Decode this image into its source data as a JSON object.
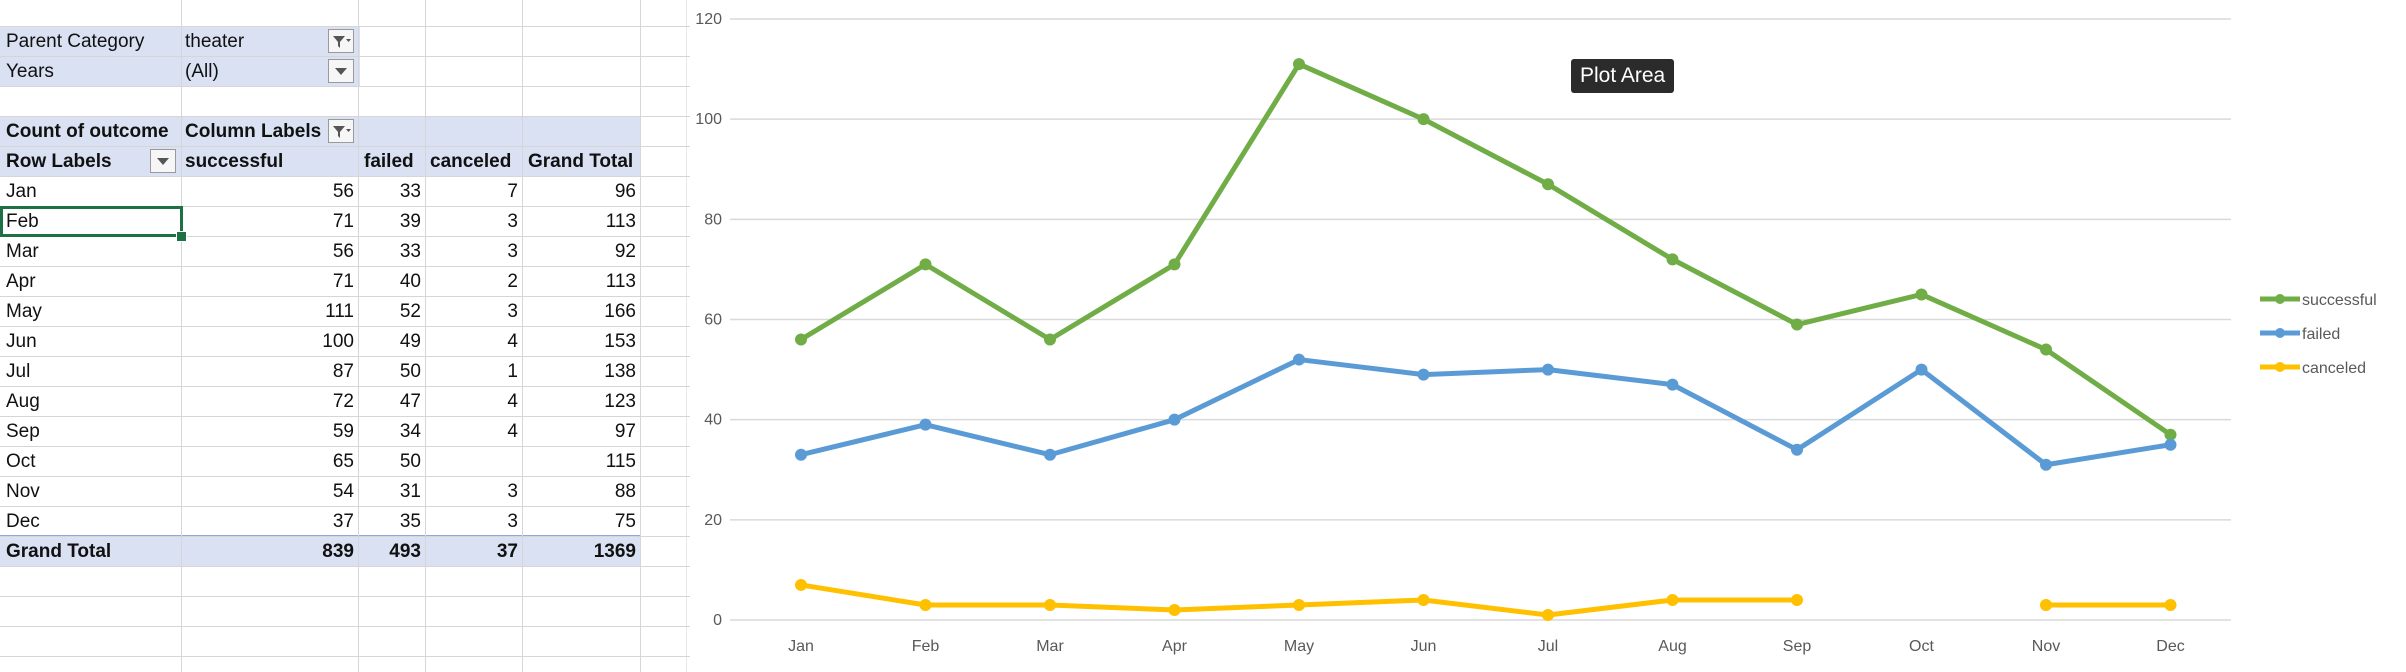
{
  "pivot": {
    "filters": [
      {
        "label": "Parent Category",
        "value": "theater",
        "filtered": true
      },
      {
        "label": "Years",
        "value": "(All)",
        "filtered": false
      }
    ],
    "count_label": "Count of outcome",
    "column_labels": "Column Labels",
    "row_labels": "Row Labels",
    "headers": [
      "successful",
      "failed",
      "canceled",
      "Grand Total"
    ],
    "rows": [
      {
        "label": "Jan",
        "values": [
          "56",
          "33",
          "7",
          "96"
        ]
      },
      {
        "label": "Feb",
        "values": [
          "71",
          "39",
          "3",
          "113"
        ]
      },
      {
        "label": "Mar",
        "values": [
          "56",
          "33",
          "3",
          "92"
        ]
      },
      {
        "label": "Apr",
        "values": [
          "71",
          "40",
          "2",
          "113"
        ]
      },
      {
        "label": "May",
        "values": [
          "111",
          "52",
          "3",
          "166"
        ]
      },
      {
        "label": "Jun",
        "values": [
          "100",
          "49",
          "4",
          "153"
        ]
      },
      {
        "label": "Jul",
        "values": [
          "87",
          "50",
          "1",
          "138"
        ]
      },
      {
        "label": "Aug",
        "values": [
          "72",
          "47",
          "4",
          "123"
        ]
      },
      {
        "label": "Sep",
        "values": [
          "59",
          "34",
          "4",
          "97"
        ]
      },
      {
        "label": "Oct",
        "values": [
          "65",
          "50",
          "",
          "115"
        ]
      },
      {
        "label": "Nov",
        "values": [
          "54",
          "31",
          "3",
          "88"
        ]
      },
      {
        "label": "Dec",
        "values": [
          "37",
          "35",
          "3",
          "75"
        ]
      }
    ],
    "grand_total": {
      "label": "Grand Total",
      "values": [
        "839",
        "493",
        "37",
        "1369"
      ]
    },
    "selected_cell": "Feb"
  },
  "tooltip": "Plot Area",
  "chart_data": {
    "type": "line",
    "categories": [
      "Jan",
      "Feb",
      "Mar",
      "Apr",
      "May",
      "Jun",
      "Jul",
      "Aug",
      "Sep",
      "Oct",
      "Nov",
      "Dec"
    ],
    "series": [
      {
        "name": "successful",
        "color": "#70ad47",
        "values": [
          56,
          71,
          56,
          71,
          111,
          100,
          87,
          72,
          59,
          65,
          54,
          37
        ]
      },
      {
        "name": "failed",
        "color": "#5b9bd5",
        "values": [
          33,
          39,
          33,
          40,
          52,
          49,
          50,
          47,
          34,
          50,
          31,
          35
        ]
      },
      {
        "name": "canceled",
        "color": "#ffc000",
        "values": [
          7,
          3,
          3,
          2,
          3,
          4,
          1,
          4,
          4,
          null,
          3,
          3
        ]
      }
    ],
    "ylim": [
      0,
      120
    ],
    "yticks": [
      0,
      20,
      40,
      60,
      80,
      100,
      120
    ],
    "grid": true,
    "legend": "right"
  }
}
